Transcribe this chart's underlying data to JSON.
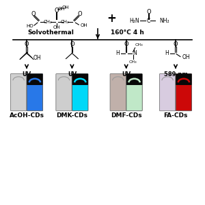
{
  "labels": [
    "AcOH-CDs",
    "DMK-CDs",
    "DMF-CDs",
    "FA-CDs"
  ],
  "excitation_labels": [
    "UV",
    "UV",
    "UV",
    "589 nm"
  ],
  "cuvette_left_colors": [
    "#d0d0d0",
    "#cecece",
    "#c0b0aa",
    "#d8cce0"
  ],
  "cuvette_right_colors": [
    "#2878e8",
    "#00d8f8",
    "#c0e8c8",
    "#cc0808"
  ],
  "cuvette_top_dark": "#080808",
  "solvothermal_text": "Solvothermal",
  "condition_text": "160°C 4 h"
}
